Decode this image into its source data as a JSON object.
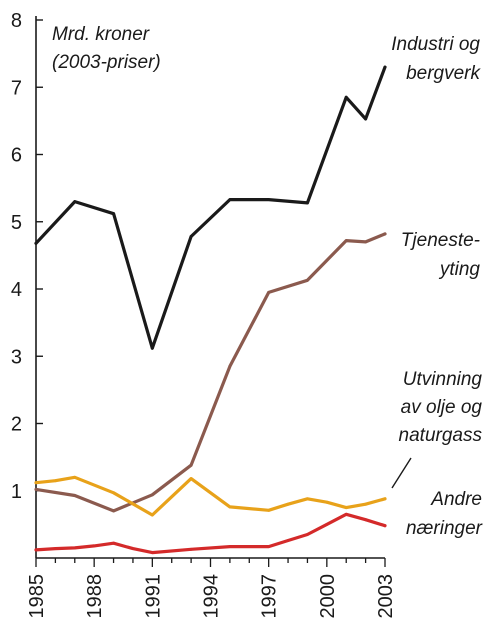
{
  "chart_data": {
    "type": "line",
    "title": "",
    "xlabel": "",
    "ylabel": "",
    "unit_label": [
      "Mrd. kroner",
      "(2003-priser)"
    ],
    "xlim": [
      1985,
      2003
    ],
    "ylim": [
      0,
      8
    ],
    "grid": false,
    "x_ticks": [
      1985,
      1988,
      1991,
      1994,
      1997,
      2000,
      2003
    ],
    "y_ticks": [
      1,
      2,
      3,
      4,
      5,
      6,
      7,
      8
    ],
    "series": [
      {
        "id": "industri",
        "label_lines": [
          "Industri og",
          "bergverk"
        ],
        "color": "#1a1a1a",
        "x": [
          1985,
          1987,
          1989,
          1991,
          1993,
          1995,
          1997,
          1999,
          2001,
          2002,
          2003
        ],
        "y": [
          4.68,
          5.3,
          5.12,
          3.12,
          4.78,
          5.33,
          5.33,
          5.28,
          6.85,
          6.53,
          7.3
        ]
      },
      {
        "id": "tjenesteyting",
        "label_lines": [
          "Tjeneste-",
          "yting"
        ],
        "color": "#8b5a4e",
        "x": [
          1985,
          1987,
          1989,
          1991,
          1993,
          1995,
          1997,
          1999,
          2001,
          2002,
          2003
        ],
        "y": [
          1.02,
          0.93,
          0.7,
          0.94,
          1.38,
          2.85,
          3.95,
          4.13,
          4.72,
          4.7,
          4.82
        ]
      },
      {
        "id": "utvinning",
        "label_lines": [
          "Utvinning",
          "av olje og",
          "naturgass"
        ],
        "color": "#e8a21a",
        "x": [
          1985,
          1986,
          1987,
          1989,
          1991,
          1993,
          1995,
          1997,
          1998,
          1999,
          2000,
          2001,
          2002,
          2003
        ],
        "y": [
          1.12,
          1.15,
          1.2,
          0.97,
          0.64,
          1.18,
          0.76,
          0.71,
          0.8,
          0.88,
          0.83,
          0.75,
          0.8,
          0.88
        ]
      },
      {
        "id": "andre",
        "label_lines": [
          "Andre",
          "næringer"
        ],
        "color": "#d42a2a",
        "x": [
          1985,
          1986,
          1987,
          1988,
          1989,
          1990,
          1991,
          1993,
          1995,
          1997,
          1998,
          1999,
          2000,
          2001,
          2002,
          2003
        ],
        "y": [
          0.12,
          0.14,
          0.15,
          0.18,
          0.22,
          0.14,
          0.08,
          0.13,
          0.17,
          0.17,
          0.26,
          0.35,
          0.5,
          0.65,
          0.57,
          0.48
        ]
      }
    ]
  }
}
